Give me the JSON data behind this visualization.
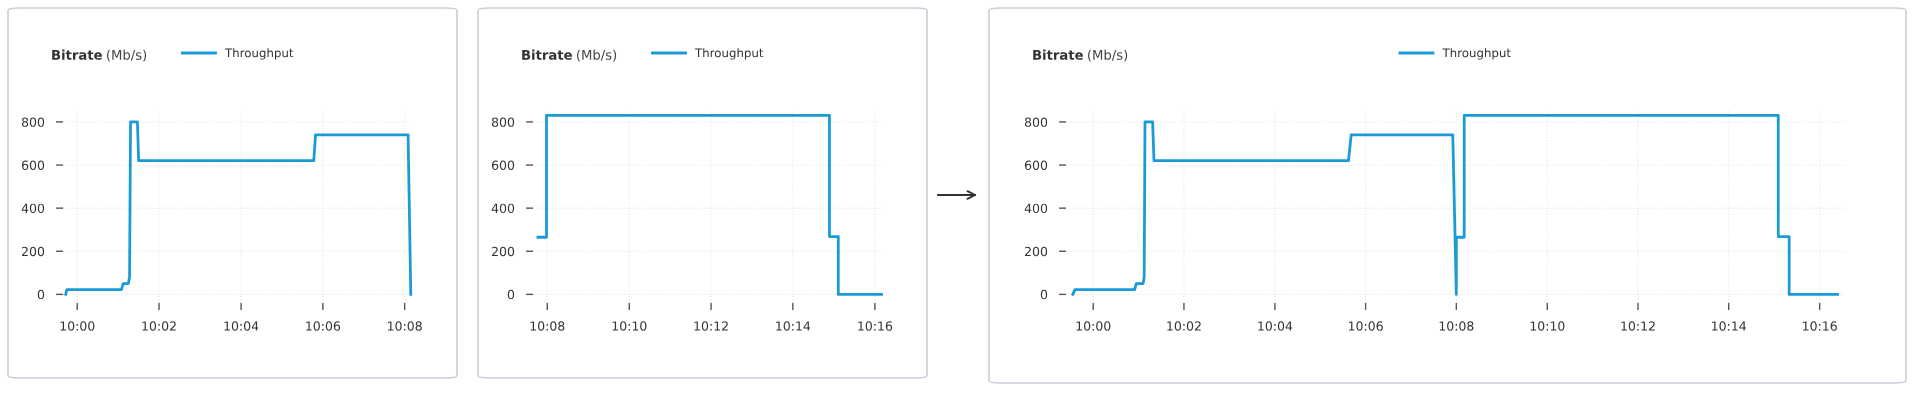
{
  "chart_data": [
    {
      "type": "line",
      "title": "Bitrate (Mb/s)",
      "legend": "top",
      "grid": true,
      "x": [
        9.9953,
        9.9958,
        10.018,
        10.0187,
        10.0208,
        10.0213,
        10.0217,
        10.0245,
        10.025,
        10.0963,
        10.097,
        10.1347,
        10.1358
      ],
      "series": [
        {
          "name": "Throughput",
          "color": "#1a9bd7",
          "values": [
            0,
            22,
            22,
            50,
            50,
            80,
            800,
            800,
            620,
            620,
            740,
            740,
            0
          ]
        }
      ],
      "xlim": [
        9.9942,
        10.1367
      ],
      "ylim": [
        -40,
        860
      ],
      "xticks": [
        {
          "value": 10.0,
          "label": "10:00"
        },
        {
          "value": 10.0333,
          "label": "10:02"
        },
        {
          "value": 10.0667,
          "label": "10:04"
        },
        {
          "value": 10.1,
          "label": "10:06"
        },
        {
          "value": 10.1333,
          "label": "10:08"
        }
      ],
      "yticks": [
        0,
        200,
        400,
        600,
        800
      ]
    },
    {
      "type": "line",
      "title": "Bitrate (Mb/s)",
      "legend": "top",
      "grid": true,
      "x": [
        10.1295,
        10.133,
        10.133,
        10.2482,
        10.2482,
        10.2518,
        10.2518,
        10.27
      ],
      "series": [
        {
          "name": "Throughput",
          "color": "#1a9bd7",
          "values": [
            265,
            265,
            830,
            830,
            268,
            268,
            0,
            0
          ]
        }
      ],
      "xlim": [
        10.1275,
        10.27
      ],
      "ylim": [
        -40,
        860
      ],
      "xticks": [
        {
          "value": 10.1333,
          "label": "10:08"
        },
        {
          "value": 10.1667,
          "label": "10:10"
        },
        {
          "value": 10.2,
          "label": "10:12"
        },
        {
          "value": 10.2333,
          "label": "10:14"
        },
        {
          "value": 10.2667,
          "label": "10:16"
        }
      ],
      "yticks": [
        0,
        200,
        400,
        600,
        800
      ]
    },
    {
      "type": "line",
      "title": "Bitrate (Mb/s)",
      "legend": "top",
      "grid": true,
      "x": [
        9.9925,
        9.9933,
        10.0152,
        10.0158,
        10.0183,
        10.0187,
        10.019,
        10.0218,
        10.0223,
        10.0937,
        10.0947,
        10.132,
        10.1333,
        10.1333,
        10.1362,
        10.1362,
        10.2515,
        10.2515,
        10.2555,
        10.2555,
        10.2733
      ],
      "series": [
        {
          "name": "Throughput",
          "color": "#1a9bd7",
          "values": [
            0,
            22,
            22,
            50,
            50,
            80,
            800,
            800,
            620,
            620,
            740,
            740,
            0,
            265,
            265,
            830,
            830,
            268,
            268,
            0,
            0
          ]
        }
      ],
      "xlim": [
        9.99,
        10.276
      ],
      "ylim": [
        -40,
        860
      ],
      "xticks": [
        {
          "value": 10.0,
          "label": "10:00"
        },
        {
          "value": 10.0333,
          "label": "10:02"
        },
        {
          "value": 10.0667,
          "label": "10:04"
        },
        {
          "value": 10.1,
          "label": "10:06"
        },
        {
          "value": 10.1333,
          "label": "10:08"
        },
        {
          "value": 10.1667,
          "label": "10:10"
        },
        {
          "value": 10.2,
          "label": "10:12"
        },
        {
          "value": 10.2333,
          "label": "10:14"
        },
        {
          "value": 10.2667,
          "label": "10:16"
        }
      ],
      "yticks": [
        0,
        200,
        400,
        600,
        800
      ]
    }
  ]
}
